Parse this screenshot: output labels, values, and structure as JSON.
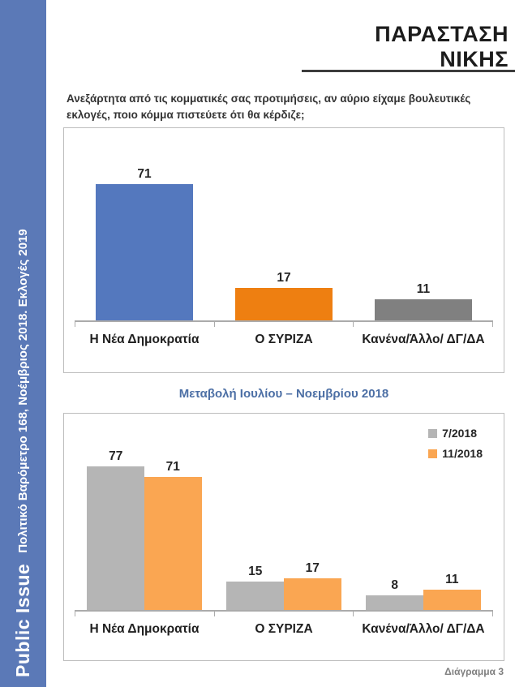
{
  "sidebar": {
    "brand": "Public Issue",
    "subtitle": "Πολιτικό Βαρόμετρο 168, Νοέμβριος 2018. Εκλογές 2019",
    "bg_color": "#5B79B7",
    "text_color": "#FFFFFF"
  },
  "header": {
    "title": "ΠΑΡΑΣΤΑΣΗ ΝΙΚΗΣ",
    "rule_color": "#3C3C3C"
  },
  "question": {
    "text": "Ανεξάρτητα από τις κομματικές σας προτιμήσεις, αν αύριο είχαμε βουλευτικές εκλογές, ποιο κόμμα πιστεύετε ότι θα κέρδιζε;"
  },
  "chart_data": [
    {
      "type": "bar",
      "title": "",
      "categories": [
        "Η Νέα Δημοκρατία",
        "Ο ΣΥΡΙΖΑ",
        "Κανένα/Άλλο/ ΔΓ/ΔΑ"
      ],
      "values": [
        71,
        17,
        11
      ],
      "bar_colors": [
        "#5478BE",
        "#EE7F11",
        "#808080"
      ],
      "data_labels": true,
      "xlabel": "",
      "ylabel": "",
      "ylim": [
        0,
        100
      ],
      "grid": false,
      "legend_position": "none"
    },
    {
      "type": "bar",
      "title": "Μεταβολή Ιουλίου – Νοεμβρίου 2018",
      "title_color": "#4C6FA5",
      "categories": [
        "Η Νέα Δημοκρατία",
        "Ο ΣΥΡΙΖΑ",
        "Κανένα/Άλλο/ ΔΓ/ΔΑ"
      ],
      "series": [
        {
          "name": "7/2018",
          "values": [
            77,
            15,
            8
          ],
          "color": "#B5B5B5"
        },
        {
          "name": "11/2018",
          "values": [
            71,
            17,
            11
          ],
          "color": "#FAA652"
        }
      ],
      "data_labels": true,
      "xlabel": "",
      "ylabel": "",
      "ylim": [
        0,
        105
      ],
      "grid": false,
      "legend_position": "top-right"
    }
  ],
  "footer": {
    "label": "Διάγραμμα 3"
  }
}
